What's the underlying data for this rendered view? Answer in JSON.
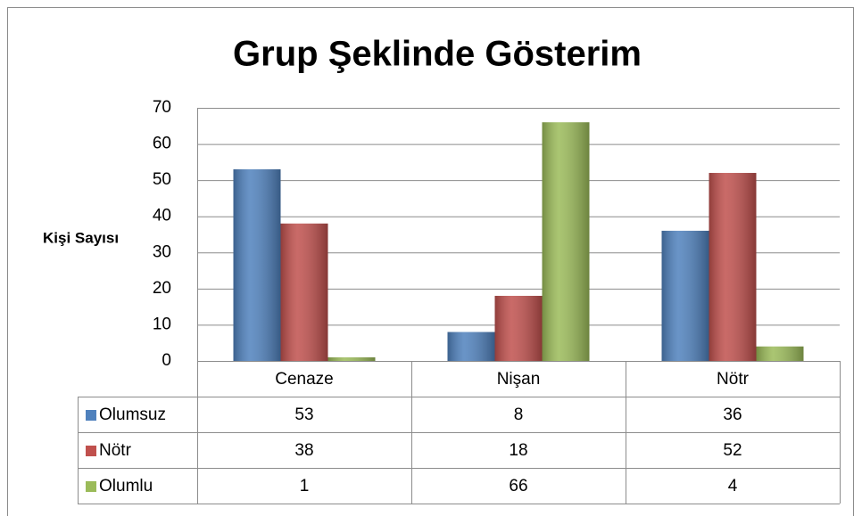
{
  "chart_data": {
    "type": "bar",
    "title": "Grup Şeklinde Gösterim",
    "y_label": "Kişi Sayısı",
    "categories": [
      "Cenaze",
      "Nişan",
      "Nötr"
    ],
    "series": [
      {
        "name": "Olumsuz",
        "color": "#4f81bd",
        "values": [
          53,
          8,
          36
        ]
      },
      {
        "name": "Nötr",
        "color": "#c0504d",
        "values": [
          38,
          18,
          52
        ]
      },
      {
        "name": "Olumlu",
        "color": "#9bbb59",
        "values": [
          1,
          66,
          4
        ]
      }
    ],
    "ylim": [
      0,
      70
    ],
    "yticks": [
      0,
      10,
      20,
      30,
      40,
      50,
      60,
      70
    ],
    "grid": true,
    "data_table": true
  }
}
